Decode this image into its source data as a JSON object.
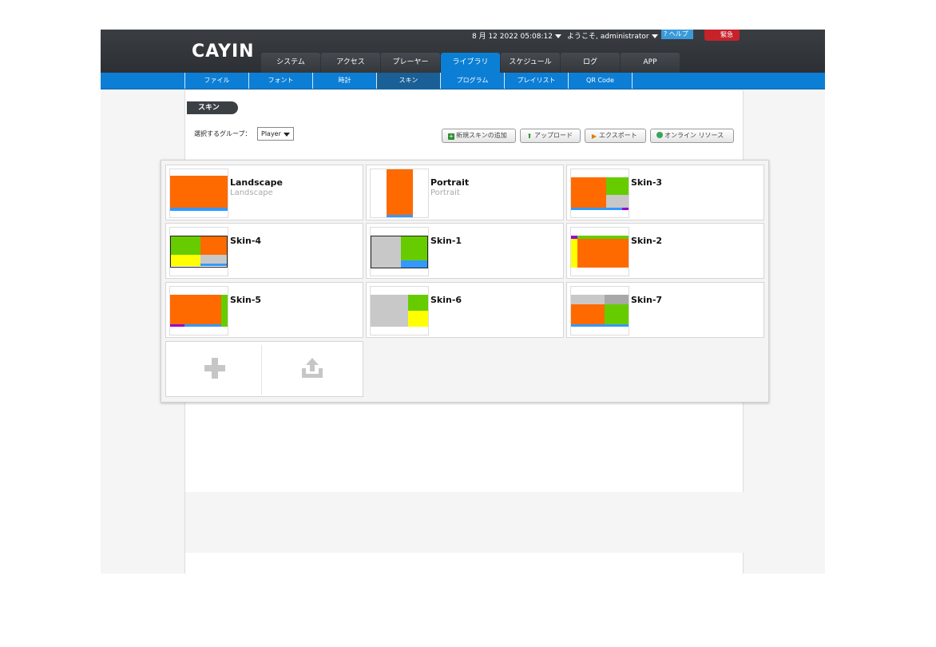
{
  "header": {
    "logo": "CAYIN",
    "datetime": "8 月 12 2022 05:08:12",
    "welcome": "ようこそ, administrator",
    "help": "ヘルプ",
    "emergency": "緊急"
  },
  "main_tabs": [
    {
      "label": "システム",
      "active": false
    },
    {
      "label": "アクセス",
      "active": false
    },
    {
      "label": "プレーヤー",
      "active": false
    },
    {
      "label": "ライブラリ",
      "active": true
    },
    {
      "label": "スケジュール",
      "active": false
    },
    {
      "label": "ログ",
      "active": false
    },
    {
      "label": "APP",
      "active": false
    }
  ],
  "sub_tabs": [
    {
      "label": "ファイル",
      "active": false
    },
    {
      "label": "フォント",
      "active": false
    },
    {
      "label": "時計",
      "active": false
    },
    {
      "label": "スキン",
      "active": true
    },
    {
      "label": "プログラム",
      "active": false
    },
    {
      "label": "プレイリスト",
      "active": false
    },
    {
      "label": "QR Code",
      "active": false
    }
  ],
  "page": {
    "title": "スキン",
    "group_label": "選択するグループ：",
    "group_value": "Player",
    "buttons": {
      "add_skin": "新規スキンの追加",
      "upload": "アップロード",
      "export": "エクスポート",
      "online": "オンライン リソース"
    }
  },
  "skins": [
    {
      "title": "Landscape",
      "subtitle": "Landscape"
    },
    {
      "title": "Portrait",
      "subtitle": "Portrait"
    },
    {
      "title": "Skin-3",
      "subtitle": ""
    },
    {
      "title": "Skin-4",
      "subtitle": ""
    },
    {
      "title": "Skin-1",
      "subtitle": ""
    },
    {
      "title": "Skin-2",
      "subtitle": ""
    },
    {
      "title": "Skin-5",
      "subtitle": ""
    },
    {
      "title": "Skin-6",
      "subtitle": ""
    },
    {
      "title": "Skin-7",
      "subtitle": ""
    }
  ],
  "colors": {
    "accent_blue": "#0c7ed6",
    "orange": "#ff6a00",
    "green": "#66cc00",
    "yellow": "#ffff00",
    "gray": "#c8c8c8",
    "purple": "#9900cc",
    "ticker_blue": "#3399ff"
  }
}
